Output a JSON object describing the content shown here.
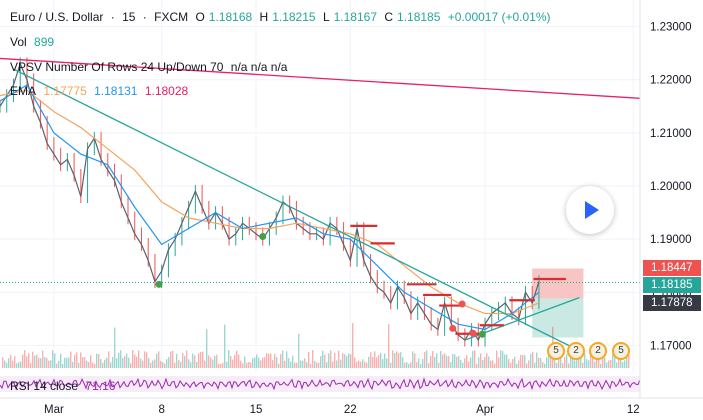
{
  "header": {
    "symbol": "Euro / U.S. Dollar",
    "sep1": "·",
    "interval": "15",
    "sep2": "·",
    "source": "FXCM",
    "open_key": "O",
    "open": "1.18168",
    "high_key": "H",
    "high": "1.18215",
    "low_key": "L",
    "low": "1.18167",
    "close_key": "C",
    "close": "1.18185",
    "change": "+0.00017 (+0.01%)"
  },
  "indicators": {
    "vol_label": "Vol",
    "vol_value": "899",
    "vpsv_label": "VPSV Number Of Rows 24 Up/Down 70",
    "vpsv_values": "n/a n/a n/a",
    "ema_label": "EMA",
    "ema_values": [
      "1.17775",
      "1.18131",
      "1.18028"
    ],
    "rsi_label": "RSI 14 close",
    "rsi_value": "71.16"
  },
  "price_labels": {
    "stop": "1.18447",
    "last": "1.18185",
    "entry": "1.17878"
  },
  "event_badges": [
    "5",
    "2",
    "2",
    "5"
  ],
  "colors": {
    "up": "#26a69a",
    "down": "#ef5350",
    "ema1": "#f7a35c",
    "ema2": "#2196f3",
    "ema3": "#e91e63",
    "trendline": "#26a69a",
    "resistance": "#e91e63",
    "rsi": "#9c27b0",
    "stop_zone": "#f7c6c4",
    "target_zone": "#c9e9e2"
  },
  "chart_data": {
    "type": "line",
    "title": "Euro / U.S. Dollar",
    "ylim": [
      1.165,
      1.235
    ],
    "yticks": [
      "1.23000",
      "1.22000",
      "1.21000",
      "1.20000",
      "1.19000",
      "1.18000",
      "1.17000"
    ],
    "ytick_values": [
      1.23,
      1.22,
      1.21,
      1.2,
      1.19,
      1.18,
      1.17
    ],
    "xticks": [
      "Mar",
      "8",
      "15",
      "22",
      "Apr",
      "12"
    ],
    "xtick_days": [
      28,
      36,
      43,
      50,
      60,
      71
    ],
    "xlim": [
      24,
      71.5
    ],
    "series": [
      {
        "kind": "price",
        "x": [
          24,
          24.5,
          25,
          25.5,
          26,
          26.5,
          27,
          27.5,
          28,
          28.5,
          29,
          29.5,
          30,
          30.5,
          31,
          31.5,
          32,
          32.5,
          33,
          33.5,
          34,
          34.5,
          35,
          35.5,
          36,
          36.5,
          37,
          37.5,
          38,
          38.5,
          39,
          39.5,
          40,
          40.5,
          41,
          41.5,
          42,
          42.5,
          43,
          43.5,
          44,
          44.5,
          45,
          45.5,
          46,
          46.5,
          47,
          47.5,
          48,
          48.5,
          49,
          49.5,
          50,
          50.5,
          51,
          51.5,
          52,
          52.5,
          53,
          53.5,
          54,
          54.5,
          55,
          55.5,
          56,
          56.5,
          57,
          57.5,
          58,
          58.5,
          59,
          59.5,
          60,
          60.5,
          61,
          61.5,
          62,
          62.5,
          63,
          63.5,
          64
        ],
        "values": [
          1.215,
          1.217,
          1.219,
          1.223,
          1.22,
          1.215,
          1.212,
          1.208,
          1.206,
          1.204,
          1.205,
          1.202,
          1.198,
          1.207,
          1.209,
          1.205,
          1.203,
          1.201,
          1.197,
          1.194,
          1.191,
          1.189,
          1.186,
          1.182,
          1.184,
          1.188,
          1.19,
          1.193,
          1.196,
          1.199,
          1.196,
          1.193,
          1.195,
          1.193,
          1.19,
          1.191,
          1.193,
          1.192,
          1.191,
          1.19,
          1.192,
          1.194,
          1.197,
          1.196,
          1.193,
          1.192,
          1.191,
          1.191,
          1.19,
          1.193,
          1.192,
          1.189,
          1.186,
          1.192,
          1.186,
          1.183,
          1.181,
          1.18,
          1.178,
          1.181,
          1.179,
          1.176,
          1.178,
          1.176,
          1.174,
          1.173,
          1.178,
          1.174,
          1.172,
          1.171,
          1.173,
          1.171,
          1.174,
          1.176,
          1.177,
          1.178,
          1.176,
          1.175,
          1.18,
          1.178,
          1.182
        ]
      },
      {
        "kind": "ema1",
        "x": [
          24,
          26,
          28,
          30,
          32,
          34,
          36,
          38,
          40,
          42,
          44,
          46,
          48,
          50,
          52,
          54,
          56,
          58,
          60,
          62,
          64
        ],
        "values": [
          1.217,
          1.218,
          1.214,
          1.211,
          1.207,
          1.203,
          1.197,
          1.194,
          1.193,
          1.192,
          1.192,
          1.193,
          1.192,
          1.191,
          1.189,
          1.185,
          1.181,
          1.178,
          1.176,
          1.176,
          1.178
        ]
      },
      {
        "kind": "ema2",
        "x": [
          24,
          26,
          28,
          30,
          32,
          34,
          36,
          38,
          40,
          42,
          44,
          46,
          48,
          50,
          52,
          54,
          56,
          58,
          60,
          62,
          64
        ],
        "values": [
          1.216,
          1.219,
          1.21,
          1.206,
          1.204,
          1.196,
          1.189,
          1.192,
          1.195,
          1.192,
          1.193,
          1.194,
          1.191,
          1.19,
          1.185,
          1.18,
          1.177,
          1.174,
          1.173,
          1.176,
          1.18
        ]
      }
    ],
    "trendline": {
      "x": [
        25,
        67
      ],
      "values": [
        1.222,
        1.169
      ]
    },
    "resistance": {
      "x": [
        24,
        71.5
      ],
      "values": [
        1.224,
        1.2165
      ]
    },
    "support": {
      "x": [
        58.5,
        67
      ],
      "values": [
        1.171,
        1.179
      ]
    },
    "position": {
      "x": [
        63.5,
        67.3
      ],
      "entry": 1.17878,
      "stop": 1.18447,
      "target": 1.1715
    },
    "hlines": [
      {
        "x": [
          50,
          52
        ],
        "value": 1.1925
      },
      {
        "x": [
          51.5,
          53.3
        ],
        "value": 1.1892
      },
      {
        "x": [
          54.2,
          56.4
        ],
        "value": 1.1815
      },
      {
        "x": [
          55.4,
          57.5
        ],
        "value": 1.1795
      },
      {
        "x": [
          56.6,
          58.4
        ],
        "value": 1.1775
      },
      {
        "x": [
          57.8,
          60
        ],
        "value": 1.1722
      },
      {
        "x": [
          59.6,
          61.4
        ],
        "value": 1.1738
      },
      {
        "x": [
          61.8,
          63.7
        ],
        "value": 1.1785
      },
      {
        "x": [
          63.6,
          66
        ],
        "value": 1.1825
      }
    ],
    "markers": [
      {
        "x": 35.8,
        "value": 1.1815,
        "color": "#43a047"
      },
      {
        "x": 43.5,
        "value": 1.1905,
        "color": "#43a047"
      },
      {
        "x": 59.8,
        "value": 1.1721,
        "color": "#43a047"
      },
      {
        "x": 57.6,
        "value": 1.1732,
        "color": "#ef5350"
      },
      {
        "x": 58.3,
        "value": 1.1778,
        "color": "#ef5350"
      },
      {
        "x": 59.1,
        "value": 1.1723,
        "color": "#ef5350"
      }
    ]
  }
}
